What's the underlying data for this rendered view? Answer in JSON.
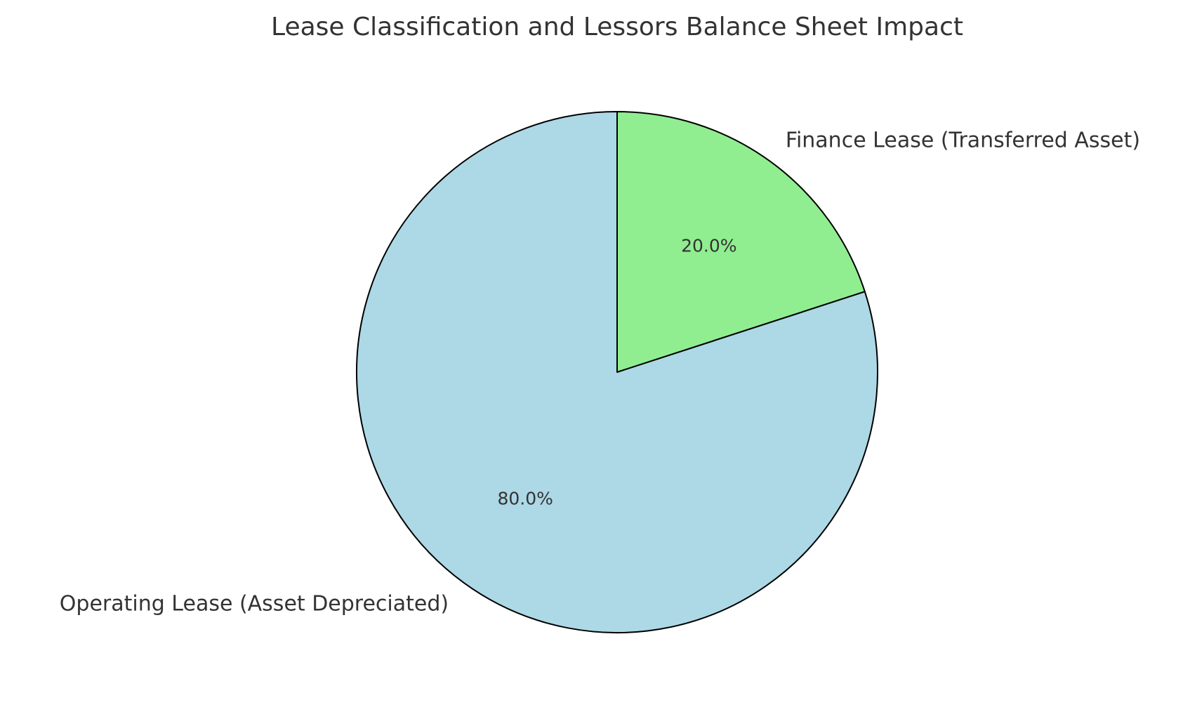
{
  "chart_data": {
    "type": "pie",
    "title": "Lease Classification and Lessors Balance Sheet Impact",
    "categories": [
      "Finance Lease (Transferred Asset)",
      "Operating Lease (Asset Depreciated)"
    ],
    "values": [
      20,
      80
    ],
    "percent_labels": [
      "20.0%",
      "80.0%"
    ],
    "colors": [
      "#90ee90",
      "#add8e6"
    ],
    "edge_color": "#000000",
    "start_angle_deg": 90,
    "direction": "clockwise"
  }
}
